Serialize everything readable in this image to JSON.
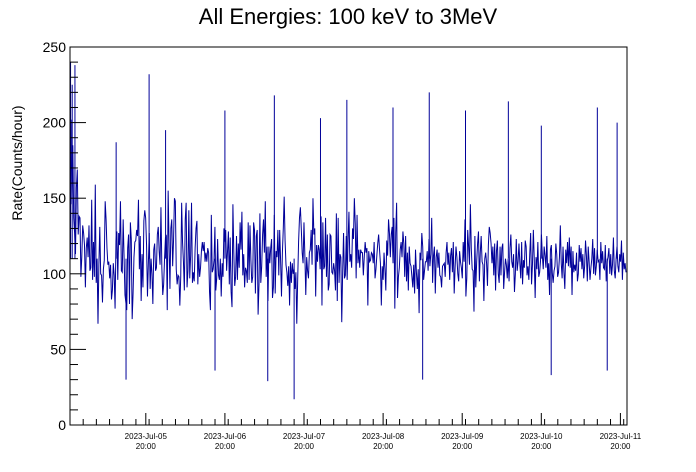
{
  "chart_data": {
    "type": "line",
    "title": "All Energies:  100 keV to 3MeV",
    "xlabel": "",
    "ylabel": "Rate(Counts/hour)",
    "ylim": [
      0,
      250
    ],
    "xlim": [
      "2023-07-04 21:00",
      "2023-07-11 22:00"
    ],
    "y_ticks": [
      "0",
      "50",
      "100",
      "150",
      "200",
      "250"
    ],
    "x_ticks": [
      {
        "line1": "2023-Jul-05",
        "line2": "20:00",
        "x": "2023-07-05 20:00"
      },
      {
        "line1": "2023-Jul-06",
        "line2": "20:00",
        "x": "2023-07-06 20:00"
      },
      {
        "line1": "2023-Jul-07",
        "line2": "20:00",
        "x": "2023-07-07 20:00"
      },
      {
        "line1": "2023-Jul-08",
        "line2": "20:00",
        "x": "2023-07-08 20:00"
      },
      {
        "line1": "2023-Jul-09",
        "line2": "20:00",
        "x": "2023-07-09 20:00"
      },
      {
        "line1": "2023-Jul-10",
        "line2": "20:00",
        "x": "2023-07-10 20:00"
      },
      {
        "line1": "2023-Jul-11",
        "line2": "20:00",
        "x": "2023-07-11 20:00"
      }
    ],
    "grid": false,
    "legend": "none",
    "line_color": "#000099",
    "series": [
      {
        "values": [
          202,
          146,
          185,
          137,
          127,
          113,
          157,
          169,
          126,
          138,
          137,
          98,
          111,
          132,
          127,
          119,
          91,
          117,
          124,
          111,
          132,
          102,
          104,
          149,
          96,
          121,
          98,
          159,
          94,
          110,
          67,
          106,
          131,
          100,
          99,
          81,
          103,
          109,
          148,
          136,
          117,
          106,
          108,
          97,
          106,
          83,
          89,
          107,
          99,
          77,
          122,
          128,
          96,
          127,
          119,
          148,
          102,
          101,
          136,
          111,
          86,
          81,
          76,
          117,
          126,
          80,
          134,
          123,
          70,
          87,
          111,
          121,
          122,
          129,
          125,
          149,
          103,
          125,
          82,
          113,
          91,
          135,
          142,
          137,
          119,
          85,
          107,
          127,
          90,
          110,
          100,
          80,
          116,
          120,
          102,
          104,
          126,
          131,
          115,
          106,
          144,
          104,
          86,
          93,
          110,
          124,
          125,
          76,
          155,
          120,
          90,
          130,
          136,
          105,
          122,
          150,
          148,
          103,
          93,
          99,
          98,
          79,
          98,
          147,
          121,
          108,
          89,
          136,
          147,
          91,
          102,
          142,
          97,
          112,
          147,
          94,
          101,
          95,
          117,
          130,
          135,
          93,
          113,
          98,
          104,
          115,
          121,
          115,
          121,
          108,
          114,
          108,
          117,
          114,
          88,
          76,
          139,
          101,
          103,
          109,
          131,
          89,
          97,
          123,
          99,
          96,
          110,
          85,
          107,
          98,
          130,
          121,
          129,
          102,
          115,
          128,
          93,
          124,
          88,
          78,
          146,
          114,
          92,
          98,
          125,
          96,
          120,
          104,
          134,
          116,
          141,
          99,
          113,
          91,
          104,
          102,
          94,
          134,
          96,
          132,
          109,
          94,
          98,
          134,
          129,
          87,
          125,
          129,
          73,
          93,
          140,
          94,
          105,
          126,
          136,
          114,
          148,
          98,
          118,
          82,
          118,
          107,
          117,
          123,
          84,
          91,
          139,
          87,
          115,
          111,
          129,
          99,
          129,
          109,
          85,
          114,
          130,
          151,
          122,
          106,
          101,
          92,
          105,
          79,
          108,
          94,
          107,
          100,
          103,
          90,
          101,
          67,
          96,
          121,
          137,
          144,
          130,
          114,
          107,
          134,
          112,
          86,
          111,
          102,
          97,
          114,
          116,
          129,
          106,
          150,
          126,
          130,
          85,
          119,
          108,
          119,
          116,
          103,
          138,
          79,
          134,
          103,
          105,
          137,
          98,
          126,
          89,
          93,
          126,
          125,
          101,
          100,
          107,
          102,
          89,
          140,
          82,
          137,
          94,
          113,
          111,
          68,
          101,
          127,
          97,
          99,
          125,
          96,
          122,
          141,
          108,
          113,
          104,
          130,
          123,
          150,
          133,
          97,
          139,
          107,
          116,
          104,
          116,
          114,
          114,
          99,
          111,
          121,
          114,
          117,
          79,
          115,
          108,
          109,
          114,
          113,
          107,
          121,
          97,
          103,
          112,
          120,
          126,
          116,
          107,
          79,
          105,
          96,
          114,
          103,
          89,
          122,
          112,
          136,
          127,
          111,
          126,
          131,
          107,
          137,
          77,
          127,
          147,
          84,
          98,
          104,
          116,
          121,
          111,
          128,
          120,
          98,
          125,
          95,
          114,
          89,
          118,
          107,
          105,
          98,
          91,
          106,
          87,
          116,
          101,
          90,
          103,
          74,
          114,
          109,
          127,
          118,
          96,
          102,
          108,
          108,
          115,
          102,
          123,
          105,
          113,
          137,
          94,
          112,
          118,
          87,
          111,
          116,
          104,
          114,
          99,
          98,
          91,
          105,
          106,
          107,
          98,
          114,
          121,
          106,
          114,
          96,
          112,
          117,
          101,
          121,
          87,
          104,
          118,
          111,
          100,
          95,
          115,
          108,
          104,
          97,
          121,
          108,
          136,
          85,
          97,
          129,
          118,
          106,
          146,
          117,
          103,
          102,
          75,
          125,
          91,
          108,
          120,
          128,
          95,
          114,
          125,
          108,
          106,
          82,
          110,
          114,
          107,
          92,
          119,
          131,
          127,
          120,
          107,
          118,
          99,
          120,
          89,
          115,
          122,
          100,
          94,
          118,
          99,
          117,
          120,
          90,
          101,
          110,
          106,
          97,
          110,
          95,
          117,
          126,
          108,
          104,
          113,
          88,
          100,
          123,
          102,
          108,
          120,
          107,
          97,
          121,
          93,
          109,
          104,
          122,
          118,
          99,
          105,
          96,
          113,
          127,
          93,
          106,
          129,
          110,
          84,
          111,
          103,
          121,
          98,
          101,
          109,
          126,
          112,
          103,
          118,
          112,
          104,
          125,
          96,
          107,
          86,
          116,
          119,
          101,
          94,
          102,
          105,
          120,
          113,
          98,
          101,
          111,
          132,
          107,
          97,
          118,
          101,
          90,
          116,
          107,
          121,
          105,
          124,
          104,
          118,
          86,
          115,
          101,
          106,
          102,
          114,
          95,
          100,
          119,
          108,
          117,
          103,
          113,
          97,
          105,
          122,
          112,
          95,
          118,
          108,
          96,
          104,
          110,
          123,
          100,
          117,
          99,
          105,
          116,
          108,
          109,
          96,
          121,
          107,
          115,
          104,
          103,
          119,
          95,
          108,
          111,
          117,
          100,
          113,
          99,
          106,
          124,
          102,
          97,
          110,
          118,
          105,
          101,
          113,
          108,
          122,
          96,
          114,
          103,
          107,
          101
        ],
        "overlay_peaks": [
          {
            "x": "2023-07-04 21:10",
            "y": 240
          },
          {
            "x": "2023-07-04 21:40",
            "y": 225
          },
          {
            "x": "2023-07-04 22:30",
            "y": 238
          },
          {
            "x": "2023-07-05 11:00",
            "y": 187
          },
          {
            "x": "2023-07-05 14:00",
            "y": 30
          },
          {
            "x": "2023-07-05 21:00",
            "y": 232
          },
          {
            "x": "2023-07-06 02:00",
            "y": 195
          },
          {
            "x": "2023-07-06 17:00",
            "y": 36
          },
          {
            "x": "2023-07-06 20:00",
            "y": 208
          },
          {
            "x": "2023-07-07 09:00",
            "y": 29
          },
          {
            "x": "2023-07-07 11:00",
            "y": 218
          },
          {
            "x": "2023-07-07 17:00",
            "y": 17
          },
          {
            "x": "2023-07-08 01:00",
            "y": 203
          },
          {
            "x": "2023-07-08 09:00",
            "y": 215
          },
          {
            "x": "2023-07-08 23:00",
            "y": 210
          },
          {
            "x": "2023-07-09 08:00",
            "y": 30
          },
          {
            "x": "2023-07-09 10:00",
            "y": 220
          },
          {
            "x": "2023-07-09 21:00",
            "y": 208
          },
          {
            "x": "2023-07-10 10:00",
            "y": 214
          },
          {
            "x": "2023-07-10 20:00",
            "y": 198
          },
          {
            "x": "2023-07-10 23:00",
            "y": 33
          },
          {
            "x": "2023-07-11 13:00",
            "y": 210
          },
          {
            "x": "2023-07-11 16:00",
            "y": 36
          },
          {
            "x": "2023-07-11 19:00",
            "y": 200
          }
        ]
      }
    ]
  }
}
